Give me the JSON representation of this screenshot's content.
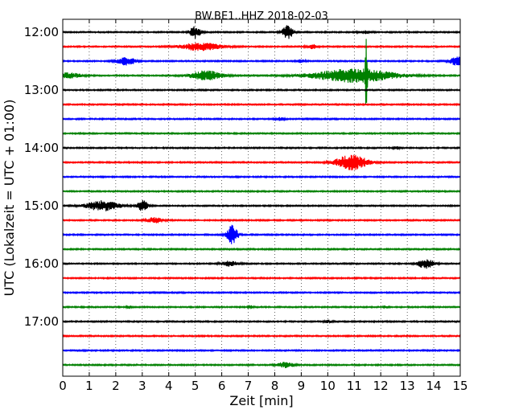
{
  "chart_data": {
    "type": "line",
    "title": "BW.BE1..HHZ 2018-02-03",
    "xlabel": "Zeit  [min]",
    "ylabel": "UTC (Lokalzeit = UTC + 01:00)",
    "xlim": [
      0,
      15
    ],
    "x_ticks": [
      "0",
      "1",
      "2",
      "3",
      "4",
      "5",
      "6",
      "7",
      "8",
      "9",
      "10",
      "11",
      "12",
      "13",
      "14",
      "15"
    ],
    "y_ticks": [
      "12:00",
      "13:00",
      "14:00",
      "15:00",
      "16:00",
      "17:00"
    ],
    "grid": true,
    "trace_interval_min": 15,
    "color_cycle": [
      "#000000",
      "#ff0000",
      "#0000ff",
      "#008000"
    ],
    "traces": [
      {
        "start": "12:00",
        "events": [
          {
            "t": 5.0,
            "amp": 1.4,
            "dur": 0.4
          },
          {
            "t": 8.5,
            "amp": 1.6,
            "dur": 0.4
          },
          {
            "t": 11.4,
            "amp": 0.3,
            "dur": 0.5
          }
        ]
      },
      {
        "start": "12:15",
        "events": [
          {
            "t": 5.2,
            "amp": 0.9,
            "dur": 1.5
          },
          {
            "t": 9.4,
            "amp": 0.5,
            "dur": 0.4
          }
        ]
      },
      {
        "start": "12:30",
        "events": [
          {
            "t": 2.4,
            "amp": 0.9,
            "dur": 0.7
          },
          {
            "t": 9.0,
            "amp": 0.3,
            "dur": 0.3
          },
          {
            "t": 14.9,
            "amp": 1.0,
            "dur": 0.6
          }
        ]
      },
      {
        "start": "12:45",
        "events": [
          {
            "t": 0.2,
            "amp": 0.6,
            "dur": 1.0
          },
          {
            "t": 5.4,
            "amp": 1.1,
            "dur": 1.2
          },
          {
            "t": 11.0,
            "amp": 1.6,
            "dur": 3.0
          },
          {
            "t": 11.45,
            "amp": 9.0,
            "dur": 0.08
          }
        ]
      },
      {
        "start": "13:00",
        "events": []
      },
      {
        "start": "13:15",
        "events": []
      },
      {
        "start": "13:30",
        "events": [
          {
            "t": 8.2,
            "amp": 0.3,
            "dur": 0.3
          }
        ]
      },
      {
        "start": "13:45",
        "events": []
      },
      {
        "start": "14:00",
        "events": [
          {
            "t": 12.6,
            "amp": 0.4,
            "dur": 0.2
          }
        ]
      },
      {
        "start": "14:15",
        "events": [
          {
            "t": 10.9,
            "amp": 1.7,
            "dur": 1.2
          }
        ]
      },
      {
        "start": "14:30",
        "events": []
      },
      {
        "start": "14:45",
        "events": []
      },
      {
        "start": "15:00",
        "events": [
          {
            "t": 1.5,
            "amp": 1.2,
            "dur": 1.2
          },
          {
            "t": 3.0,
            "amp": 1.3,
            "dur": 0.4
          }
        ]
      },
      {
        "start": "15:15",
        "events": [
          {
            "t": 3.5,
            "amp": 0.7,
            "dur": 0.6
          }
        ]
      },
      {
        "start": "15:30",
        "events": [
          {
            "t": 6.4,
            "amp": 2.2,
            "dur": 0.4
          }
        ]
      },
      {
        "start": "15:45",
        "events": []
      },
      {
        "start": "16:00",
        "events": [
          {
            "t": 6.3,
            "amp": 0.6,
            "dur": 0.6
          },
          {
            "t": 13.7,
            "amp": 1.1,
            "dur": 0.6
          }
        ]
      },
      {
        "start": "16:15",
        "events": []
      },
      {
        "start": "16:30",
        "events": []
      },
      {
        "start": "16:45",
        "events": [
          {
            "t": 2.5,
            "amp": 0.3,
            "dur": 0.2
          },
          {
            "t": 7.1,
            "amp": 0.3,
            "dur": 0.2
          },
          {
            "t": 12.2,
            "amp": 0.3,
            "dur": 0.2
          }
        ]
      },
      {
        "start": "17:00",
        "events": [
          {
            "t": 10.0,
            "amp": 0.3,
            "dur": 0.3
          }
        ]
      },
      {
        "start": "17:15",
        "events": []
      },
      {
        "start": "17:30",
        "events": []
      },
      {
        "start": "17:45",
        "events": [
          {
            "t": 8.4,
            "amp": 0.6,
            "dur": 0.6
          }
        ]
      }
    ]
  }
}
